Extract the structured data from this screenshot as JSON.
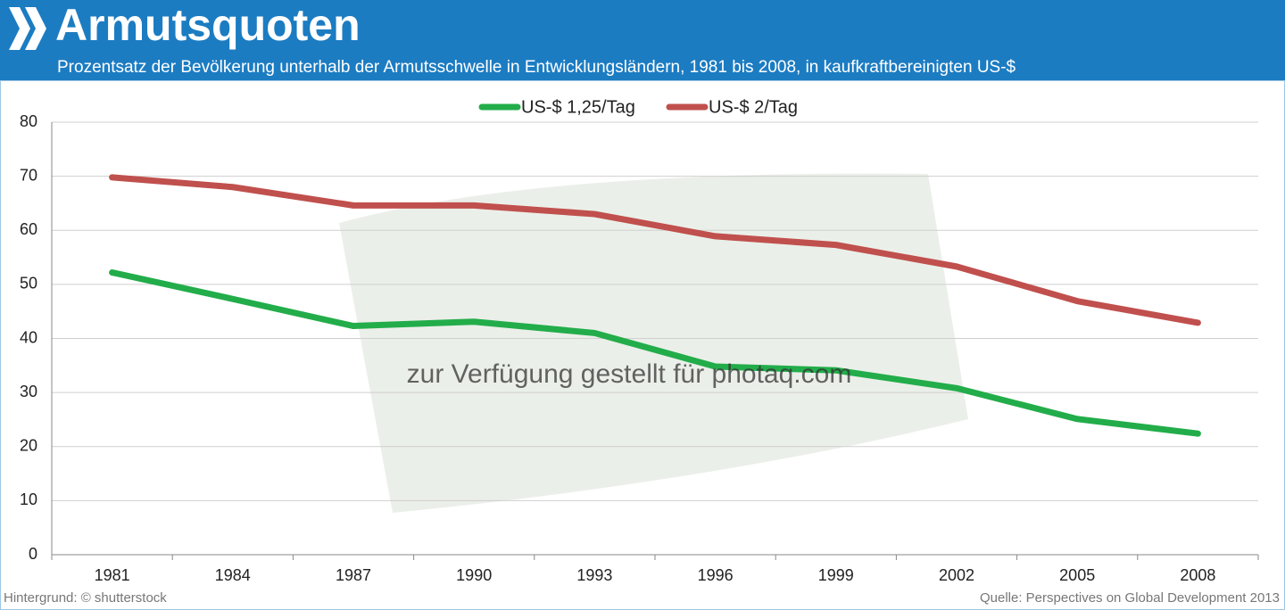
{
  "chart_data": {
    "type": "line",
    "title": "Armutsquoten",
    "subtitle": "Prozentsatz der Bevölkerung unterhalb der Armutsschwelle in Entwicklungsländern, 1981 bis 2008, in kaufkraftbereinigten US-$",
    "categories": [
      "1981",
      "1984",
      "1987",
      "1990",
      "1993",
      "1996",
      "1999",
      "2002",
      "2005",
      "2008"
    ],
    "series": [
      {
        "name": "US-$ 1,25/Tag",
        "color": "#22ad4a",
        "values": [
          52.2,
          47.3,
          42.3,
          43.1,
          41.0,
          34.8,
          34.1,
          30.8,
          25.1,
          22.4
        ]
      },
      {
        "name": "US-$ 2/Tag",
        "color": "#c0504d",
        "values": [
          69.8,
          68.0,
          64.6,
          64.6,
          63.0,
          58.9,
          57.3,
          53.3,
          46.9,
          42.9
        ]
      }
    ],
    "ylim": [
      0,
      80
    ],
    "yticks": [
      0,
      10,
      20,
      30,
      40,
      50,
      60,
      70,
      80
    ],
    "grid": true,
    "legend": "top",
    "watermark": "zur Verfügung gestellt für photaq.com",
    "footnote_left": "Hintergrund: © shutterstock",
    "footnote_right": "Quelle: Perspectives on Global Development 2013"
  }
}
